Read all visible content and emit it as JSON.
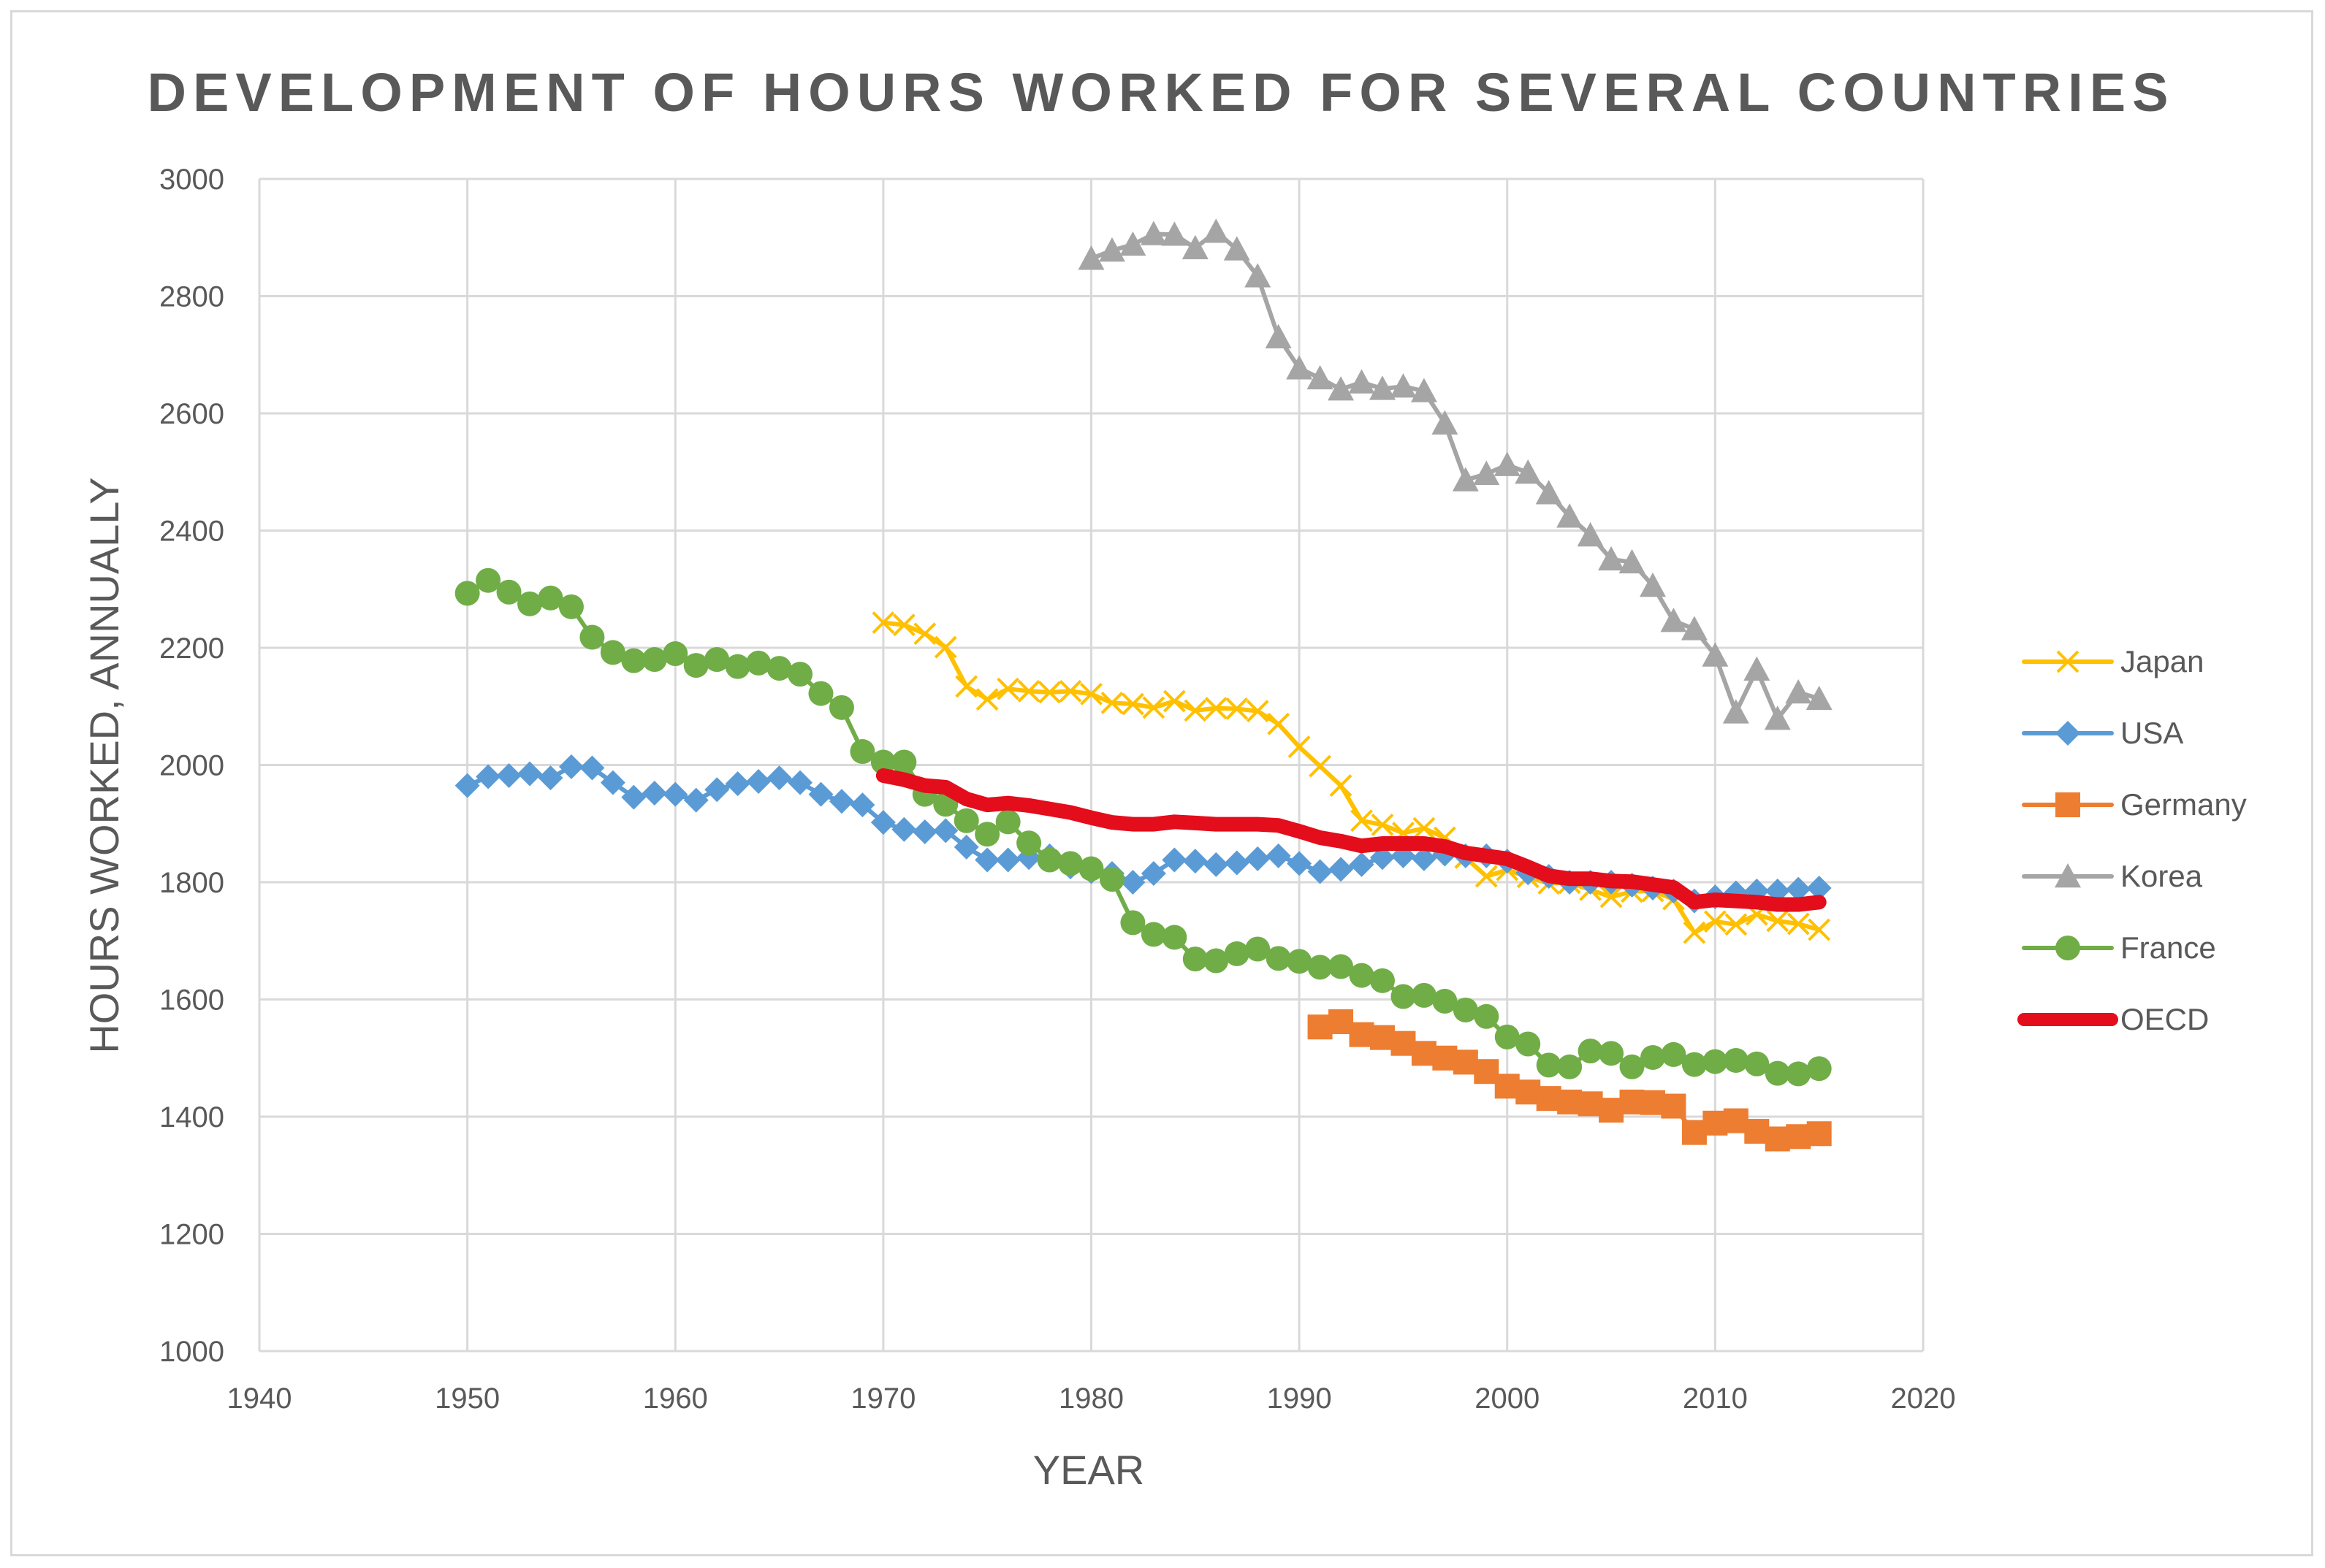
{
  "chart_data": {
    "type": "line",
    "title": "DEVELOPMENT OF HOURS WORKED FOR SEVERAL COUNTRIES",
    "xlabel": "YEAR",
    "ylabel": "HOURS WORKED, ANNUALLY",
    "xlim": [
      1940,
      2020
    ],
    "ylim": [
      1000,
      3000
    ],
    "xticks": [
      1940,
      1950,
      1960,
      1970,
      1980,
      1990,
      2000,
      2010,
      2020
    ],
    "yticks": [
      1000,
      1200,
      1400,
      1600,
      1800,
      2000,
      2200,
      2400,
      2600,
      2800,
      3000
    ],
    "grid": true,
    "legend_position": "right",
    "series": [
      {
        "name": "Japan",
        "color": "#ffc000",
        "marker": "x",
        "x": [
          1970,
          1971,
          1972,
          1973,
          1974,
          1975,
          1976,
          1977,
          1978,
          1979,
          1980,
          1981,
          1982,
          1983,
          1984,
          1985,
          1986,
          1987,
          1988,
          1989,
          1990,
          1991,
          1992,
          1993,
          1994,
          1995,
          1996,
          1997,
          1998,
          1999,
          2000,
          2001,
          2002,
          2003,
          2004,
          2005,
          2006,
          2007,
          2008,
          2009,
          2010,
          2011,
          2012,
          2013,
          2014,
          2015
        ],
        "y": [
          2243,
          2239,
          2224,
          2201,
          2134,
          2112,
          2130,
          2126,
          2124,
          2126,
          2121,
          2106,
          2104,
          2098,
          2109,
          2093,
          2097,
          2096,
          2092,
          2070,
          2031,
          1998,
          1965,
          1905,
          1898,
          1884,
          1892,
          1876,
          1842,
          1810,
          1821,
          1809,
          1798,
          1799,
          1787,
          1775,
          1784,
          1785,
          1771,
          1714,
          1733,
          1728,
          1745,
          1734,
          1729,
          1719
        ]
      },
      {
        "name": "USA",
        "color": "#5b9bd5",
        "marker": "diamond",
        "x": [
          1950,
          1951,
          1952,
          1953,
          1954,
          1955,
          1956,
          1957,
          1958,
          1959,
          1960,
          1961,
          1962,
          1963,
          1964,
          1965,
          1966,
          1967,
          1968,
          1969,
          1970,
          1971,
          1972,
          1973,
          1974,
          1975,
          1976,
          1977,
          1978,
          1979,
          1980,
          1981,
          1982,
          1983,
          1984,
          1985,
          1986,
          1987,
          1988,
          1989,
          1990,
          1991,
          1992,
          1993,
          1994,
          1995,
          1996,
          1997,
          1998,
          1999,
          2000,
          2001,
          2002,
          2003,
          2004,
          2005,
          2006,
          2007,
          2008,
          2009,
          2010,
          2011,
          2012,
          2013,
          2014,
          2015
        ],
        "y": [
          1965,
          1980,
          1982,
          1985,
          1978,
          1997,
          1995,
          1970,
          1945,
          1952,
          1950,
          1940,
          1958,
          1968,
          1972,
          1978,
          1970,
          1950,
          1938,
          1932,
          1902,
          1890,
          1886,
          1888,
          1860,
          1838,
          1838,
          1842,
          1845,
          1826,
          1818,
          1815,
          1800,
          1815,
          1838,
          1836,
          1830,
          1833,
          1840,
          1845,
          1832,
          1818,
          1822,
          1830,
          1842,
          1845,
          1840,
          1848,
          1845,
          1845,
          1836,
          1816,
          1810,
          1800,
          1800,
          1800,
          1795,
          1790,
          1785,
          1768,
          1775,
          1782,
          1785,
          1785,
          1788,
          1790
        ]
      },
      {
        "name": "Germany",
        "color": "#ed7d31",
        "marker": "square",
        "x": [
          1991,
          1992,
          1993,
          1994,
          1995,
          1996,
          1997,
          1998,
          1999,
          2000,
          2001,
          2002,
          2003,
          2004,
          2005,
          2006,
          2007,
          2008,
          2009,
          2010,
          2011,
          2012,
          2013,
          2014,
          2015
        ],
        "y": [
          1553,
          1562,
          1540,
          1535,
          1525,
          1508,
          1500,
          1493,
          1477,
          1452,
          1442,
          1431,
          1425,
          1422,
          1411,
          1425,
          1424,
          1418,
          1373,
          1389,
          1393,
          1375,
          1362,
          1366,
          1371
        ]
      },
      {
        "name": "Korea",
        "color": "#a5a5a5",
        "marker": "triangle",
        "x": [
          1980,
          1981,
          1982,
          1983,
          1984,
          1985,
          1986,
          1987,
          1988,
          1989,
          1990,
          1991,
          1992,
          1993,
          1994,
          1995,
          1996,
          1997,
          1998,
          1999,
          2000,
          2001,
          2002,
          2003,
          2004,
          2005,
          2006,
          2007,
          2008,
          2009,
          2010,
          2011,
          2012,
          2013,
          2014,
          2015
        ],
        "y": [
          2864,
          2878,
          2888,
          2906,
          2905,
          2882,
          2910,
          2880,
          2834,
          2730,
          2677,
          2660,
          2641,
          2653,
          2642,
          2646,
          2638,
          2583,
          2486,
          2497,
          2512,
          2499,
          2464,
          2424,
          2392,
          2351,
          2346,
          2306,
          2246,
          2232,
          2187,
          2090,
          2163,
          2079,
          2124,
          2113
        ]
      },
      {
        "name": "France",
        "color": "#70ad47",
        "marker": "circle",
        "x": [
          1950,
          1951,
          1952,
          1953,
          1954,
          1955,
          1956,
          1957,
          1958,
          1959,
          1960,
          1961,
          1962,
          1963,
          1964,
          1965,
          1966,
          1967,
          1968,
          1969,
          1970,
          1971,
          1972,
          1973,
          1974,
          1975,
          1976,
          1977,
          1978,
          1979,
          1980,
          1981,
          1982,
          1983,
          1984,
          1985,
          1986,
          1987,
          1988,
          1989,
          1990,
          1991,
          1992,
          1993,
          1994,
          1995,
          1996,
          1997,
          1998,
          1999,
          2000,
          2001,
          2002,
          2003,
          2004,
          2005,
          2006,
          2007,
          2008,
          2009,
          2010,
          2011,
          2012,
          2013,
          2014,
          2015
        ],
        "y": [
          2293,
          2315,
          2295,
          2275,
          2285,
          2270,
          2218,
          2192,
          2178,
          2180,
          2190,
          2170,
          2180,
          2168,
          2174,
          2165,
          2155,
          2122,
          2098,
          2023,
          2005,
          2005,
          1950,
          1933,
          1905,
          1882,
          1903,
          1867,
          1838,
          1832,
          1823,
          1805,
          1731,
          1711,
          1706,
          1669,
          1666,
          1678,
          1686,
          1670,
          1665,
          1655,
          1656,
          1641,
          1632,
          1605,
          1607,
          1597,
          1582,
          1571,
          1536,
          1524,
          1488,
          1485,
          1512,
          1508,
          1485,
          1501,
          1506,
          1489,
          1494,
          1496,
          1490,
          1474,
          1473,
          1482
        ]
      },
      {
        "name": "OECD",
        "color": "#e30d1b",
        "marker": "none",
        "x": [
          1970,
          1971,
          1972,
          1973,
          1974,
          1975,
          1976,
          1977,
          1978,
          1979,
          1980,
          1981,
          1982,
          1983,
          1984,
          1985,
          1986,
          1987,
          1988,
          1989,
          1990,
          1991,
          1992,
          1993,
          1994,
          1995,
          1996,
          1997,
          1998,
          1999,
          2000,
          2001,
          2002,
          2003,
          2004,
          2005,
          2006,
          2007,
          2008,
          2009,
          2010,
          2011,
          2012,
          2013,
          2014,
          2015
        ],
        "y": [
          1982,
          1975,
          1965,
          1962,
          1942,
          1932,
          1935,
          1931,
          1925,
          1919,
          1910,
          1902,
          1899,
          1899,
          1903,
          1901,
          1899,
          1899,
          1899,
          1897,
          1887,
          1876,
          1870,
          1862,
          1866,
          1866,
          1866,
          1861,
          1850,
          1845,
          1840,
          1826,
          1811,
          1806,
          1806,
          1802,
          1801,
          1796,
          1791,
          1766,
          1770,
          1768,
          1766,
          1762,
          1762,
          1766
        ]
      }
    ]
  }
}
